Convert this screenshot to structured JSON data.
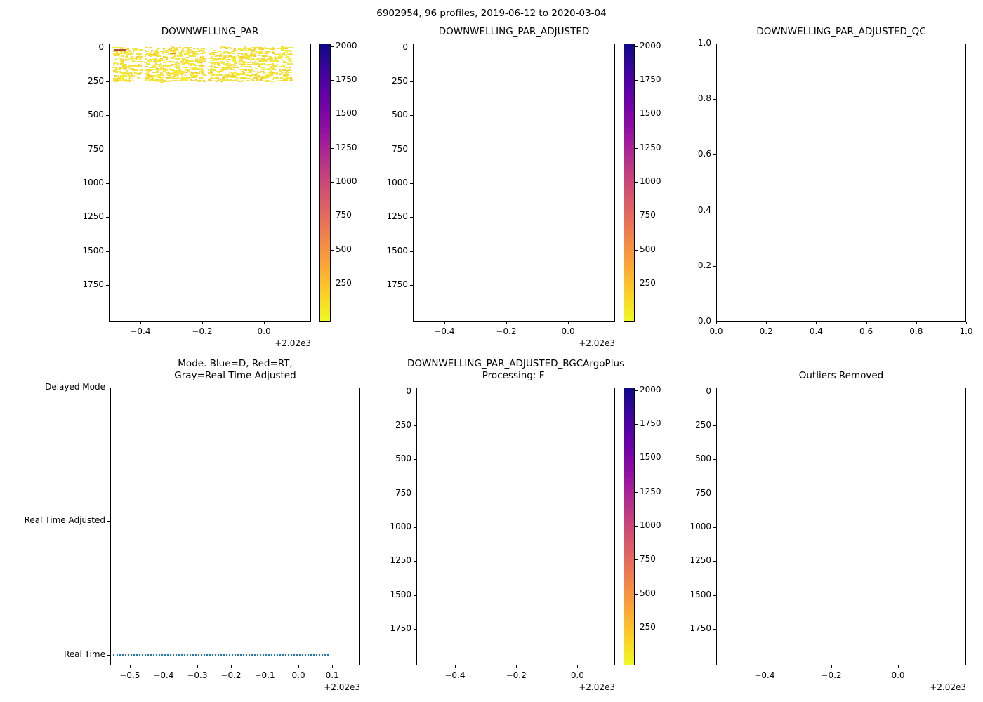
{
  "figure": {
    "suptitle": "6902954, 96 profiles, 2019-06-12 to 2020-03-04",
    "background": "#ffffff",
    "colormap_name": "plasma-reversed",
    "colormap_stops": [
      "#0d0887",
      "#41049d",
      "#6a00a8",
      "#8f0da4",
      "#b12a90",
      "#cc4778",
      "#e16462",
      "#f2844b",
      "#fca636",
      "#fcce25",
      "#f0f921"
    ]
  },
  "chart_data": [
    {
      "id": "par",
      "type": "scatter",
      "title_lines": [
        "DOWNWELLING_PAR"
      ],
      "xlim": [
        -0.502,
        0.152
      ],
      "xticks": [
        {
          "v": -0.4,
          "label": "−0.4"
        },
        {
          "v": -0.2,
          "label": "−0.2"
        },
        {
          "v": 0.0,
          "label": "0.0"
        }
      ],
      "x_offset_label": "+2.02e3",
      "ylim": [
        -30,
        2020
      ],
      "yticks": [
        {
          "v": 0,
          "label": "0"
        },
        {
          "v": 250,
          "label": "250"
        },
        {
          "v": 500,
          "label": "500"
        },
        {
          "v": 750,
          "label": "750"
        },
        {
          "v": 1000,
          "label": "1000"
        },
        {
          "v": 1250,
          "label": "1250"
        },
        {
          "v": 1500,
          "label": "1500"
        },
        {
          "v": 1750,
          "label": "1750"
        }
      ],
      "colorbar": {
        "vmin": -30,
        "vmax": 2020,
        "ticks": [
          {
            "v": 250,
            "label": "250"
          },
          {
            "v": 500,
            "label": "500"
          },
          {
            "v": 750,
            "label": "750"
          },
          {
            "v": 1000,
            "label": "1000"
          },
          {
            "v": 1250,
            "label": "1250"
          },
          {
            "v": 1500,
            "label": "1500"
          },
          {
            "v": 1750,
            "label": "1750"
          },
          {
            "v": 2000,
            "label": "2000"
          }
        ]
      },
      "scatter_band": {
        "x_range": [
          -0.49,
          0.085
        ],
        "depth_range": [
          -10,
          248
        ],
        "n_marks": 1500,
        "rows": 13,
        "colors": [
          "#f4f12f",
          "#efe93d",
          "#fbe636",
          "#f2e556",
          "#f8da3c",
          "#fbcf33"
        ],
        "gap_x": [
          [
            -0.402,
            -0.388
          ],
          [
            -0.196,
            -0.182
          ]
        ],
        "special_marks": [
          {
            "x0": -0.487,
            "x1": -0.447,
            "depth": 14,
            "color": "#b84a39"
          },
          {
            "x0": -0.305,
            "x1": -0.283,
            "depth": 36,
            "color": "#ef8e3b"
          }
        ]
      }
    },
    {
      "id": "par_adjusted",
      "type": "scatter",
      "title_lines": [
        "DOWNWELLING_PAR_ADJUSTED"
      ],
      "xlim": [
        -0.502,
        0.152
      ],
      "xticks": [
        {
          "v": -0.4,
          "label": "−0.4"
        },
        {
          "v": -0.2,
          "label": "−0.2"
        },
        {
          "v": 0.0,
          "label": "0.0"
        }
      ],
      "x_offset_label": "+2.02e3",
      "ylim": [
        -30,
        2020
      ],
      "yticks": [
        {
          "v": 0,
          "label": "0"
        },
        {
          "v": 250,
          "label": "250"
        },
        {
          "v": 500,
          "label": "500"
        },
        {
          "v": 750,
          "label": "750"
        },
        {
          "v": 1000,
          "label": "1000"
        },
        {
          "v": 1250,
          "label": "1250"
        },
        {
          "v": 1500,
          "label": "1500"
        },
        {
          "v": 1750,
          "label": "1750"
        }
      ],
      "colorbar": {
        "vmin": -30,
        "vmax": 2020,
        "ticks": [
          {
            "v": 250,
            "label": "250"
          },
          {
            "v": 500,
            "label": "500"
          },
          {
            "v": 750,
            "label": "750"
          },
          {
            "v": 1000,
            "label": "1000"
          },
          {
            "v": 1250,
            "label": "1250"
          },
          {
            "v": 1500,
            "label": "1500"
          },
          {
            "v": 1750,
            "label": "1750"
          },
          {
            "v": 2000,
            "label": "2000"
          }
        ]
      }
    },
    {
      "id": "qc",
      "type": "scatter",
      "title_lines": [
        "DOWNWELLING_PAR_ADJUSTED_QC"
      ],
      "xlim": [
        0.0,
        1.0
      ],
      "xticks": [
        {
          "v": 0.0,
          "label": "0.0"
        },
        {
          "v": 0.2,
          "label": "0.2"
        },
        {
          "v": 0.4,
          "label": "0.4"
        },
        {
          "v": 0.6,
          "label": "0.6"
        },
        {
          "v": 0.8,
          "label": "0.8"
        },
        {
          "v": 1.0,
          "label": "1.0"
        }
      ],
      "ylim": [
        1.0,
        0.0
      ],
      "yticks": [
        {
          "v": 0.0,
          "label": "0.0"
        },
        {
          "v": 0.2,
          "label": "0.2"
        },
        {
          "v": 0.4,
          "label": "0.4"
        },
        {
          "v": 0.6,
          "label": "0.6"
        },
        {
          "v": 0.8,
          "label": "0.8"
        },
        {
          "v": 1.0,
          "label": "1.0"
        }
      ]
    },
    {
      "id": "mode",
      "type": "line",
      "title_lines": [
        "Mode. Blue=D, Red=RT,",
        "Gray=Real Time Adjusted"
      ],
      "xlim": [
        -0.558,
        0.183
      ],
      "xticks": [
        {
          "v": -0.5,
          "label": "−0.5"
        },
        {
          "v": -0.4,
          "label": "−0.4"
        },
        {
          "v": -0.3,
          "label": "−0.3"
        },
        {
          "v": -0.2,
          "label": "−0.2"
        },
        {
          "v": -0.1,
          "label": "−0.1"
        },
        {
          "v": 0.0,
          "label": "0.0"
        },
        {
          "v": 0.1,
          "label": "0.1"
        }
      ],
      "x_offset_label": "+2.02e3",
      "ylim": [
        2.0,
        -0.08
      ],
      "yticks": [
        {
          "v": 2,
          "label": "Delayed Mode"
        },
        {
          "v": 1,
          "label": "Real Time Adjusted"
        },
        {
          "v": 0,
          "label": "Real Time"
        }
      ],
      "line": {
        "y_value": 0,
        "y_category": "Real Time",
        "x_start": -0.55,
        "x_end": 0.09,
        "color": "#1f77b4",
        "style": "dotted"
      }
    },
    {
      "id": "bgc",
      "type": "scatter",
      "title_lines": [
        "DOWNWELLING_PAR_ADJUSTED_BGCArgoPlus",
        "Processing: F_"
      ],
      "xlim": [
        -0.526,
        0.123
      ],
      "xticks": [
        {
          "v": -0.4,
          "label": "−0.4"
        },
        {
          "v": -0.2,
          "label": "−0.2"
        },
        {
          "v": 0.0,
          "label": "0.0"
        }
      ],
      "x_offset_label": "+2.02e3",
      "ylim": [
        -30,
        2020
      ],
      "yticks": [
        {
          "v": 0,
          "label": "0"
        },
        {
          "v": 250,
          "label": "250"
        },
        {
          "v": 500,
          "label": "500"
        },
        {
          "v": 750,
          "label": "750"
        },
        {
          "v": 1000,
          "label": "1000"
        },
        {
          "v": 1250,
          "label": "1250"
        },
        {
          "v": 1500,
          "label": "1500"
        },
        {
          "v": 1750,
          "label": "1750"
        }
      ],
      "colorbar": {
        "vmin": -30,
        "vmax": 2020,
        "ticks": [
          {
            "v": 250,
            "label": "250"
          },
          {
            "v": 500,
            "label": "500"
          },
          {
            "v": 750,
            "label": "750"
          },
          {
            "v": 1000,
            "label": "1000"
          },
          {
            "v": 1250,
            "label": "1250"
          },
          {
            "v": 1500,
            "label": "1500"
          },
          {
            "v": 1750,
            "label": "1750"
          },
          {
            "v": 2000,
            "label": "2000"
          }
        ]
      }
    },
    {
      "id": "outliers",
      "type": "scatter",
      "title_lines": [
        "Outliers Removed"
      ],
      "xlim": [
        -0.545,
        0.204
      ],
      "xticks": [
        {
          "v": -0.4,
          "label": "−0.4"
        },
        {
          "v": -0.2,
          "label": "−0.2"
        },
        {
          "v": 0.0,
          "label": "0.0"
        }
      ],
      "x_offset_label": "+2.02e3",
      "ylim": [
        -30,
        2020
      ],
      "yticks": [
        {
          "v": 0,
          "label": "0"
        },
        {
          "v": 250,
          "label": "250"
        },
        {
          "v": 500,
          "label": "500"
        },
        {
          "v": 750,
          "label": "750"
        },
        {
          "v": 1000,
          "label": "1000"
        },
        {
          "v": 1250,
          "label": "1250"
        },
        {
          "v": 1500,
          "label": "1500"
        },
        {
          "v": 1750,
          "label": "1750"
        }
      ]
    }
  ]
}
